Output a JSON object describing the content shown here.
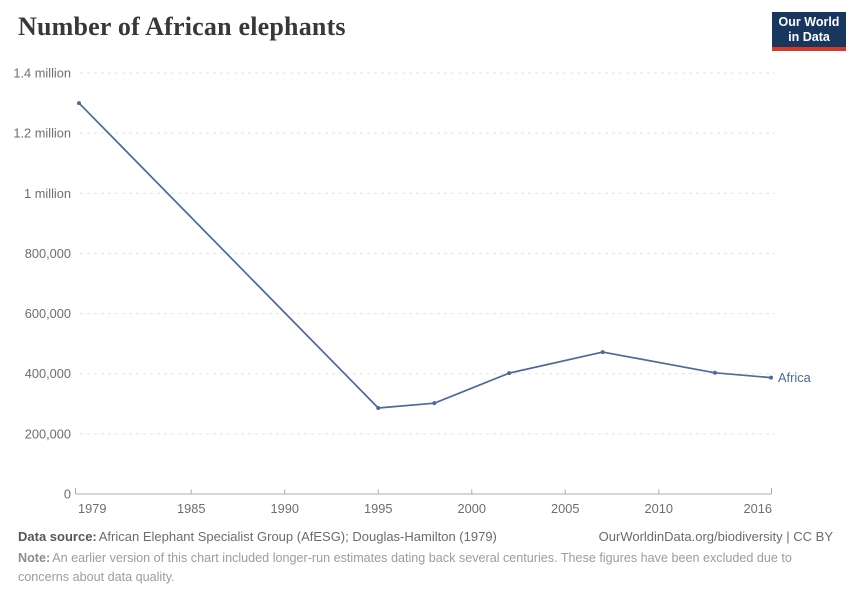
{
  "header": {
    "title": "Number of African elephants",
    "logo": {
      "line1": "Our World",
      "line2": "in Data"
    }
  },
  "chart_data": {
    "type": "line",
    "title": "Number of African elephants",
    "xlabel": "",
    "ylabel": "",
    "x_range": [
      1979,
      2016
    ],
    "y_range": [
      0,
      1400000
    ],
    "grid": "horizontal-dashed",
    "legend_position": "end-of-line-label",
    "series": [
      {
        "name": "Africa",
        "color": "#4C6A9C",
        "points": [
          {
            "year": 1979,
            "value": 1300000
          },
          {
            "year": 1995,
            "value": 286000
          },
          {
            "year": 1998,
            "value": 302000
          },
          {
            "year": 2002,
            "value": 402000
          },
          {
            "year": 2007,
            "value": 472000
          },
          {
            "year": 2013,
            "value": 403000
          },
          {
            "year": 2016,
            "value": 387000
          }
        ]
      }
    ],
    "x_ticks": [
      {
        "year": 1979,
        "label": "1979"
      },
      {
        "year": 1985,
        "label": "1985"
      },
      {
        "year": 1990,
        "label": "1990"
      },
      {
        "year": 1995,
        "label": "1995"
      },
      {
        "year": 2000,
        "label": "2000"
      },
      {
        "year": 2005,
        "label": "2005"
      },
      {
        "year": 2010,
        "label": "2010"
      },
      {
        "year": 2016,
        "label": "2016"
      }
    ],
    "y_ticks": [
      {
        "value": 0,
        "label": "0"
      },
      {
        "value": 200000,
        "label": "200,000"
      },
      {
        "value": 400000,
        "label": "400,000"
      },
      {
        "value": 600000,
        "label": "600,000"
      },
      {
        "value": 800000,
        "label": "800,000"
      },
      {
        "value": 1000000,
        "label": "1 million"
      },
      {
        "value": 1200000,
        "label": "1.2 million"
      },
      {
        "value": 1400000,
        "label": "1.4 million"
      }
    ]
  },
  "footer": {
    "data_source_label": "Data source:",
    "data_source_text": "African Elephant Specialist Group (AfESG); Douglas-Hamilton (1979)",
    "link_text": "OurWorldinData.org/biodiversity | CC BY",
    "note_label": "Note:",
    "note_text": "An earlier version of this chart included longer-run estimates dating back several centuries. These figures have been excluded due to concerns about data quality."
  },
  "colors": {
    "line": "#4C6A9C",
    "grid": "#e2e2e2",
    "axis": "#adadad",
    "tick_label": "#6e6e6e",
    "title_text": "#383838",
    "logo_background": "#18375f",
    "logo_accent": "#d5392a",
    "footer_text": "#6b6b6b",
    "note_text": "#9c9c9c"
  }
}
